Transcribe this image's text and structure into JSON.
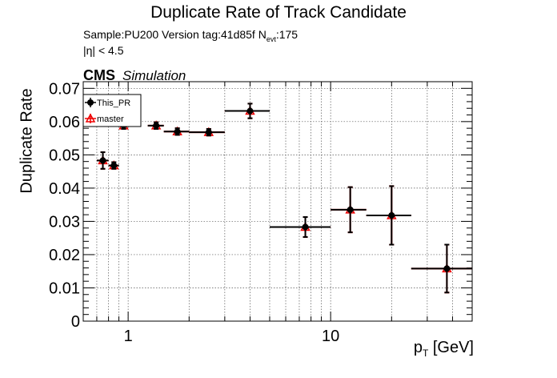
{
  "chart_data": {
    "type": "scatter",
    "title": "Duplicate Rate of Track Candidate",
    "info_line1_prefix": "Sample:PU200   Version tag:41d85f  N",
    "info_line1_sub": "evt",
    "info_line1_suffix": ":175",
    "info_line2": "|η| < 4.5",
    "cms_label": "CMS",
    "cms_sublabel": "Simulation",
    "xlabel_main": "p",
    "xlabel_sub": "T",
    "xlabel_unit": " [GeV]",
    "ylabel": "Duplicate Rate",
    "x_scale": "log",
    "xlim": [
      0.6,
      50
    ],
    "ylim": [
      0,
      0.072
    ],
    "grid": true,
    "legend_position": "top-left",
    "x_tick_labels": [
      "1",
      "10"
    ],
    "y_tick_labels": [
      "0",
      "0.01",
      "0.02",
      "0.03",
      "0.04",
      "0.05",
      "0.06",
      "0.07"
    ],
    "series": [
      {
        "name": "This_PR",
        "color": "#000000",
        "marker": "circle",
        "points": [
          {
            "x": 0.75,
            "xlo": 0.7,
            "xhi": 0.8,
            "y": 0.0483,
            "yerr": 0.0025
          },
          {
            "x": 0.85,
            "xlo": 0.8,
            "xhi": 0.9,
            "y": 0.0468,
            "yerr": 0.001
          },
          {
            "x": 0.95,
            "xlo": 0.9,
            "xhi": 1.0,
            "y": 0.0588,
            "yerr": 0.001
          },
          {
            "x": 1.375,
            "xlo": 1.25,
            "xhi": 1.5,
            "y": 0.0588,
            "yerr": 0.001
          },
          {
            "x": 1.75,
            "xlo": 1.5,
            "xhi": 2.0,
            "y": 0.057,
            "yerr": 0.001
          },
          {
            "x": 2.5,
            "xlo": 2.0,
            "xhi": 3.0,
            "y": 0.0568,
            "yerr": 0.001
          },
          {
            "x": 4.0,
            "xlo": 3.0,
            "xhi": 5.0,
            "y": 0.0632,
            "yerr": 0.0022
          },
          {
            "x": 7.5,
            "xlo": 5.0,
            "xhi": 10.0,
            "y": 0.0283,
            "yerr": 0.003
          },
          {
            "x": 12.5,
            "xlo": 10.0,
            "xhi": 15.0,
            "y": 0.0335,
            "yerr": 0.0068
          },
          {
            "x": 20.0,
            "xlo": 15.0,
            "xhi": 25.0,
            "y": 0.0318,
            "yerr": 0.0088
          },
          {
            "x": 37.5,
            "xlo": 25.0,
            "xhi": 50.0,
            "y": 0.0158,
            "yerr": 0.0072
          }
        ]
      },
      {
        "name": "master",
        "color": "#ee0000",
        "marker": "open-triangle",
        "points": [
          {
            "x": 0.75,
            "xlo": 0.7,
            "xhi": 0.8,
            "y": 0.0483,
            "yerr": 0.0025
          },
          {
            "x": 0.85,
            "xlo": 0.8,
            "xhi": 0.9,
            "y": 0.0468,
            "yerr": 0.001
          },
          {
            "x": 0.95,
            "xlo": 0.9,
            "xhi": 1.0,
            "y": 0.0588,
            "yerr": 0.001
          },
          {
            "x": 1.375,
            "xlo": 1.25,
            "xhi": 1.5,
            "y": 0.0588,
            "yerr": 0.001
          },
          {
            "x": 1.75,
            "xlo": 1.5,
            "xhi": 2.0,
            "y": 0.057,
            "yerr": 0.001
          },
          {
            "x": 2.5,
            "xlo": 2.0,
            "xhi": 3.0,
            "y": 0.0568,
            "yerr": 0.001
          },
          {
            "x": 4.0,
            "xlo": 3.0,
            "xhi": 5.0,
            "y": 0.0632,
            "yerr": 0.0022
          },
          {
            "x": 7.5,
            "xlo": 5.0,
            "xhi": 10.0,
            "y": 0.0283,
            "yerr": 0.003
          },
          {
            "x": 12.5,
            "xlo": 10.0,
            "xhi": 15.0,
            "y": 0.0335,
            "yerr": 0.0068
          },
          {
            "x": 20.0,
            "xlo": 15.0,
            "xhi": 25.0,
            "y": 0.0318,
            "yerr": 0.0088
          },
          {
            "x": 37.5,
            "xlo": 25.0,
            "xhi": 50.0,
            "y": 0.0158,
            "yerr": 0.0072
          }
        ]
      }
    ]
  }
}
